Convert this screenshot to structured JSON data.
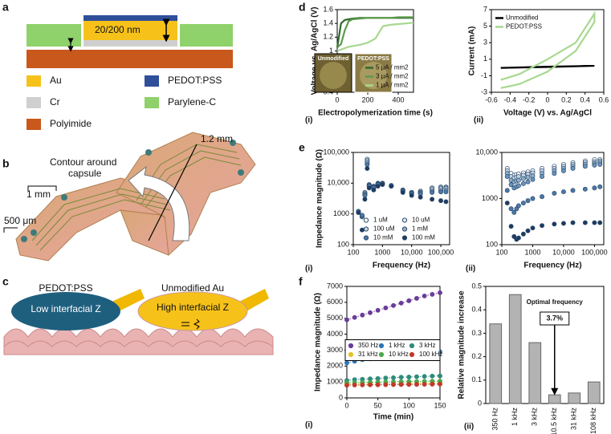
{
  "panel_labels": [
    "a",
    "b",
    "c",
    "d",
    "e",
    "f"
  ],
  "panel_a": {
    "thickness": "20/200 nm",
    "legend": [
      "Au",
      "PEDOT:PSS",
      "Cr",
      "Parylene-C",
      "Polyimide"
    ]
  },
  "panel_b": {
    "contour": [
      "Contour around",
      "capsule"
    ],
    "width_1": "1 mm",
    "width_2": "500 μm",
    "width_3": "1.2 mm"
  },
  "panel_c": {
    "left_title": "PEDOT:PSS",
    "right_title": "Unmodified Au",
    "left_label": "Low interfacial Z",
    "right_label": "High interfacial Z"
  },
  "chart_data": [
    {
      "type": "line",
      "sublabel": "(i)",
      "xlabel": "Electropolymerization time (s)",
      "ylabel": "Voltage vs. Ag/AgCl (V)",
      "insets": [
        "Unmodified",
        "PEDOT:PSS"
      ],
      "x": [
        0,
        25,
        50,
        75,
        100,
        150,
        200,
        250,
        300,
        350,
        400,
        450,
        500
      ],
      "series": [
        {
          "name": "5 μA / mm2",
          "color": "#2f6a2f",
          "values": [
            1.05,
            1.4,
            1.45,
            1.46,
            1.47,
            1.48,
            1.48,
            1.48,
            1.48,
            1.48,
            1.48,
            1.48,
            1.48
          ]
        },
        {
          "name": "3 μA / mm2",
          "color": "#5c9a4c",
          "values": [
            1.05,
            1.1,
            1.3,
            1.43,
            1.46,
            1.47,
            1.48,
            1.48,
            1.48,
            1.48,
            1.49,
            1.49,
            1.49
          ]
        },
        {
          "name": "1 μA / mm2",
          "color": "#a8d890",
          "values": [
            1.0,
            1.02,
            1.04,
            1.06,
            1.07,
            1.09,
            1.12,
            1.18,
            1.36,
            1.38,
            1.39,
            1.4,
            1.41
          ]
        }
      ],
      "xlim": [
        0,
        500
      ],
      "xticks": [
        0,
        200,
        400
      ],
      "ylim": [
        0.4,
        1.6
      ],
      "yticks": [
        0.4,
        0.6,
        0.8,
        1,
        1.2,
        1.4,
        1.6
      ],
      "legend": "lower right"
    },
    {
      "type": "line",
      "sublabel": "(ii)",
      "xlabel": "Voltage (V) vs. Ag/AgCl",
      "ylabel": "Current (mA)",
      "series": [
        {
          "name": "Unmodified",
          "color": "#000000",
          "x": [
            -0.5,
            0,
            0.5,
            0,
            -0.5
          ],
          "values": [
            -0.05,
            0.05,
            0.2,
            0.1,
            -0.05
          ]
        },
        {
          "name": "PEDOT:PSS",
          "color": "#a8d890",
          "x": [
            -0.5,
            -0.3,
            0,
            0.3,
            0.5,
            0.5,
            0.3,
            0,
            -0.3,
            -0.5
          ],
          "values": [
            -2.5,
            -2,
            -0.5,
            2,
            5.5,
            6.5,
            3,
            1,
            -0.8,
            -1.5
          ]
        }
      ],
      "xlim": [
        -0.6,
        0.6
      ],
      "xticks": [
        -0.6,
        -0.4,
        -0.2,
        0,
        0.2,
        0.4,
        0.6
      ],
      "ylim": [
        -3,
        7
      ],
      "yticks": [
        -3,
        -1,
        1,
        3,
        5,
        7
      ],
      "legend": "upper left"
    },
    {
      "type": "scatter",
      "log": true,
      "sublabel": "(i)",
      "xlabel": "Frequency (Hz)",
      "ylabel": "Impedance magnitude (Ω)",
      "marker_edge": "#2b4a6b",
      "x": [
        150,
        200,
        250,
        300,
        350,
        500,
        700,
        1000,
        2000,
        5000,
        10000,
        20000,
        50000,
        100000,
        150000
      ],
      "series": [
        {
          "name": "1 uM",
          "color": "#ffffff",
          "values": [
            1200,
            800,
            5000,
            60000,
            9000,
            8000,
            10000,
            10000,
            8000,
            6000,
            5000,
            5500,
            7000,
            7500,
            7500
          ]
        },
        {
          "name": "10 uM",
          "color": "#e3ecf4",
          "values": [
            1200,
            850,
            4800,
            55000,
            8800,
            7800,
            9800,
            9900,
            8000,
            6000,
            5000,
            5300,
            6800,
            7200,
            7300
          ]
        },
        {
          "name": "100 uM",
          "color": "#c6d7e8",
          "values": [
            1200,
            850,
            4500,
            50000,
            8500,
            7500,
            9500,
            9800,
            8200,
            5800,
            4800,
            5000,
            6200,
            6600,
            6800
          ]
        },
        {
          "name": "1 mM",
          "color": "#8fb0cf",
          "values": [
            1200,
            900,
            4200,
            45000,
            8200,
            7200,
            9200,
            9600,
            8300,
            5600,
            4600,
            4700,
            5500,
            5800,
            6000
          ]
        },
        {
          "name": "10 mM",
          "color": "#4c79a8",
          "values": [
            1200,
            900,
            4000,
            40000,
            8000,
            7000,
            9000,
            9500,
            8500,
            5500,
            4500,
            4500,
            5000,
            5200,
            5200
          ]
        },
        {
          "name": "100 mM",
          "color": "#1f3a5f",
          "values": [
            1100,
            300,
            3000,
            30000,
            7000,
            6000,
            8000,
            9000,
            8000,
            5000,
            4000,
            3500,
            3000,
            2700,
            2500
          ]
        }
      ],
      "xlim": [
        100,
        200000
      ],
      "xticks": [
        100,
        1000,
        {
          "value": 10000,
          "label": "10,000"
        },
        {
          "value": 100000,
          "label": "100,000"
        }
      ],
      "ylim": [
        100,
        100000
      ],
      "yticks": [
        100,
        1000,
        {
          "value": 10000,
          "label": "10,000"
        },
        {
          "value": 100000,
          "label": "100,000"
        }
      ],
      "legend": "lower center"
    },
    {
      "type": "scatter",
      "log": true,
      "sublabel": "(ii)",
      "xlabel": "Frequency (Hz)",
      "marker_edge": "#2b4a6b",
      "x": [
        150,
        200,
        250,
        300,
        350,
        500,
        700,
        1000,
        2000,
        5000,
        10000,
        20000,
        50000,
        100000,
        150000
      ],
      "series": [
        {
          "color": "#ffffff",
          "values": [
            4500,
            3500,
            3200,
            3300,
            3400,
            3600,
            3800,
            4000,
            4500,
            5000,
            5500,
            6000,
            6500,
            7000,
            7000
          ]
        },
        {
          "color": "#c6d7e8",
          "values": [
            4000,
            3000,
            2800,
            2900,
            3000,
            3200,
            3400,
            3600,
            4000,
            4500,
            5000,
            5500,
            6000,
            6300,
            6500
          ]
        },
        {
          "color": "#8fb0cf",
          "values": [
            3500,
            2500,
            2300,
            2400,
            2500,
            2700,
            2900,
            3100,
            3500,
            4000,
            4500,
            5000,
            5500,
            5800,
            6000
          ]
        },
        {
          "color": "#6a93bd",
          "values": [
            3000,
            2000,
            1700,
            1800,
            1900,
            2100,
            2300,
            2600,
            3000,
            3500,
            4000,
            4500,
            5000,
            5300,
            5500
          ]
        },
        {
          "color": "#4c79a8",
          "values": [
            1500,
            600,
            500,
            600,
            700,
            800,
            900,
            1000,
            1100,
            1300,
            1400,
            1500,
            1600,
            1700,
            1800
          ]
        },
        {
          "color": "#1f3a5f",
          "values": [
            800,
            250,
            150,
            130,
            140,
            170,
            200,
            230,
            260,
            280,
            290,
            300,
            300,
            300,
            300
          ]
        }
      ],
      "xlim": [
        100,
        200000
      ],
      "xticks": [
        100,
        1000,
        {
          "value": 10000,
          "label": "10,000"
        },
        {
          "value": 100000,
          "label": "100,000"
        }
      ],
      "ylim": [
        100,
        10000
      ],
      "yticks": [
        100,
        1000,
        {
          "value": 10000,
          "label": "10,000"
        }
      ]
    },
    {
      "type": "scatter",
      "sublabel": "(i)",
      "xlabel": "Time (min)",
      "ylabel": "Impedance magnitude (Ω)",
      "trendline": true,
      "x": [
        0,
        12.5,
        25,
        37.5,
        50,
        62.5,
        75,
        87.5,
        100,
        112.5,
        125,
        137.5,
        150
      ],
      "series": [
        {
          "name": "350 Hz",
          "color": "#6a3d9a",
          "values": [
            4900,
            5050,
            5200,
            5350,
            5500,
            5650,
            5800,
            5950,
            6100,
            6250,
            6400,
            6500,
            6600
          ]
        },
        {
          "name": "1 kHz",
          "color": "#2e75b6",
          "values": [
            2200,
            2300,
            2400,
            2450,
            2500,
            2550,
            2600,
            2650,
            2700,
            2750,
            2800,
            2850,
            2900
          ]
        },
        {
          "name": "3 kHz",
          "color": "#2e8b7a",
          "values": [
            1100,
            1150,
            1170,
            1200,
            1220,
            1250,
            1270,
            1300,
            1310,
            1330,
            1350,
            1370,
            1380
          ]
        },
        {
          "name": "31 kHz",
          "color": "#e6c229",
          "values": [
            850,
            860,
            870,
            880,
            885,
            890,
            895,
            900,
            905,
            910,
            915,
            920,
            925
          ]
        },
        {
          "name": "10 kHz",
          "color": "#4aa84a",
          "values": [
            950,
            960,
            970,
            980,
            990,
            1000,
            1010,
            1015,
            1020,
            1030,
            1040,
            1045,
            1050
          ]
        },
        {
          "name": "100 kHz",
          "color": "#c0392b",
          "values": [
            800,
            810,
            815,
            820,
            825,
            830,
            835,
            840,
            845,
            850,
            855,
            860,
            865
          ]
        }
      ],
      "xlim": [
        0,
        150
      ],
      "xticks": [
        0,
        50,
        100,
        150
      ],
      "ylim": [
        0,
        7000
      ],
      "yticks": [
        0,
        1000,
        2000,
        3000,
        4000,
        5000,
        6000,
        7000
      ],
      "legend": "center"
    },
    {
      "type": "bar",
      "sublabel": "(ii)",
      "ylabel": "Relative magnitude increase",
      "color": "#b3b3b3",
      "annotations": [
        "Optimal frequency",
        "3.7%"
      ],
      "categories": [
        "350 Hz",
        "1 kHz",
        "3 kHz",
        "10.5 kHz",
        "31 kHz",
        "108 kHz"
      ],
      "values": [
        0.34,
        0.465,
        0.26,
        0.037,
        0.045,
        0.092
      ],
      "ylim": [
        0,
        0.5
      ],
      "yticks": [
        0,
        0.1,
        0.2,
        0.3,
        0.4,
        0.5
      ]
    }
  ]
}
